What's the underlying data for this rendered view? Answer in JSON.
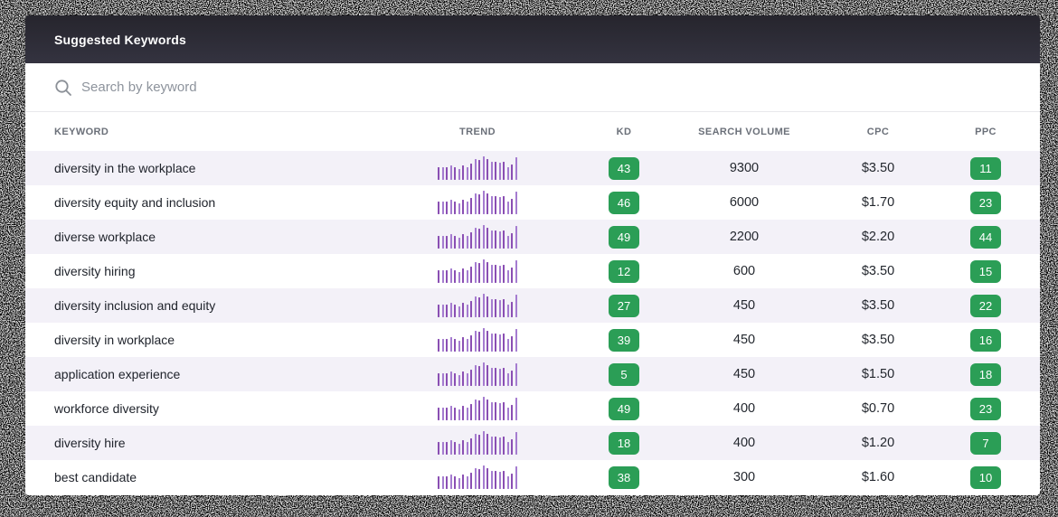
{
  "window": {
    "title": "Suggested Keywords"
  },
  "search": {
    "placeholder": "Search by keyword",
    "value": ""
  },
  "table": {
    "columns": [
      "KEYWORD",
      "TREND",
      "KD",
      "SEARCH VOLUME",
      "CPC",
      "PPC"
    ],
    "rows": [
      {
        "keyword": "diversity in the workplace",
        "kd": "43",
        "search_volume": "9300",
        "cpc": "$3.50",
        "ppc": "11"
      },
      {
        "keyword": "diversity equity and inclusion",
        "kd": "46",
        "search_volume": "6000",
        "cpc": "$1.70",
        "ppc": "23"
      },
      {
        "keyword": "diverse workplace",
        "kd": "49",
        "search_volume": "2200",
        "cpc": "$2.20",
        "ppc": "44"
      },
      {
        "keyword": "diversity hiring",
        "kd": "12",
        "search_volume": "600",
        "cpc": "$3.50",
        "ppc": "15"
      },
      {
        "keyword": "diversity inclusion and equity",
        "kd": "27",
        "search_volume": "450",
        "cpc": "$3.50",
        "ppc": "22"
      },
      {
        "keyword": "diversity in workplace",
        "kd": "39",
        "search_volume": "450",
        "cpc": "$3.50",
        "ppc": "16"
      },
      {
        "keyword": "application experience",
        "kd": "5",
        "search_volume": "450",
        "cpc": "$1.50",
        "ppc": "18"
      },
      {
        "keyword": "workforce diversity",
        "kd": "49",
        "search_volume": "400",
        "cpc": "$0.70",
        "ppc": "23"
      },
      {
        "keyword": "diversity hire",
        "kd": "18",
        "search_volume": "400",
        "cpc": "$1.20",
        "ppc": "7"
      },
      {
        "keyword": "best candidate",
        "kd": "38",
        "search_volume": "300",
        "cpc": "$1.60",
        "ppc": "10"
      }
    ]
  },
  "trend_sparkline": {
    "type": "bar",
    "note": "identical mini bar-trend rendered in every row",
    "values": [
      0.55,
      0.55,
      0.55,
      0.6,
      0.55,
      0.45,
      0.6,
      0.55,
      0.7,
      0.9,
      0.85,
      1.0,
      0.9,
      0.78,
      0.78,
      0.72,
      0.78,
      0.55,
      0.65,
      0.95
    ]
  },
  "colors": {
    "badge_green": "#2b9e56",
    "row_stripe": "#f3f1f8",
    "header_dark_top": "#26252d",
    "header_dark_bottom": "#343340",
    "trend_purple": "#8a4fb3",
    "trend_purple_light": "#a57cd0"
  }
}
